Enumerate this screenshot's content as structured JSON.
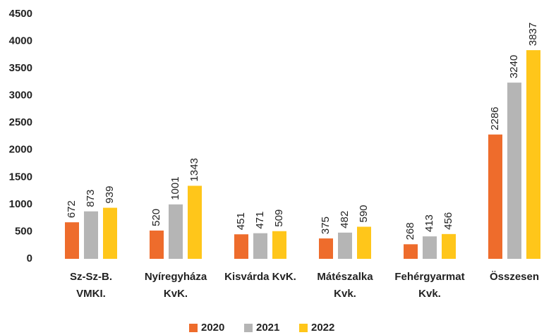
{
  "chart_data": {
    "type": "bar",
    "categories": [
      [
        "Sz-Sz-B.",
        "VMKI."
      ],
      [
        "Nyíregyháza",
        "KvK."
      ],
      [
        "Kisvárda KvK."
      ],
      [
        "Mátészalka",
        "Kvk."
      ],
      [
        "Fehérgyarmat",
        "Kvk."
      ],
      [
        "Összesen"
      ]
    ],
    "series": [
      {
        "name": "2020",
        "color": "#ee6c2c",
        "values": [
          672,
          520,
          451,
          375,
          268,
          2286
        ]
      },
      {
        "name": "2021",
        "color": "#b5b5b5",
        "values": [
          873,
          1001,
          471,
          482,
          413,
          3240
        ]
      },
      {
        "name": "2022",
        "color": "#ffc61a",
        "values": [
          939,
          1343,
          509,
          590,
          456,
          3837
        ]
      }
    ],
    "ylim": [
      0,
      4500
    ],
    "yticks": [
      0,
      500,
      1000,
      1500,
      2000,
      2500,
      3000,
      3500,
      4000,
      4500
    ],
    "grid": false,
    "legend": "bottom"
  }
}
